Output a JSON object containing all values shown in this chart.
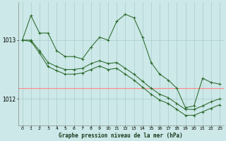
{
  "title": "Graphe pression niveau de la mer (hPa)",
  "bg_color": "#cce8e8",
  "grid_color": "#aacccc",
  "line_color": "#2d6a2d",
  "red_line_color": "#ff8888",
  "xlim": [
    -0.5,
    23.5
  ],
  "ylim": [
    1011.55,
    1013.65
  ],
  "yticks": [
    1012.0,
    1013.0
  ],
  "xticks": [
    0,
    1,
    2,
    3,
    4,
    5,
    6,
    7,
    8,
    9,
    10,
    11,
    12,
    13,
    14,
    15,
    16,
    17,
    18,
    19,
    20,
    21,
    22,
    23
  ],
  "red_y": 1012.18,
  "series1": [
    1013.0,
    1013.42,
    1013.12,
    1013.12,
    1012.82,
    1012.72,
    1012.72,
    1012.68,
    1012.88,
    1013.05,
    1013.0,
    1013.32,
    1013.44,
    1013.38,
    1013.05,
    1012.62,
    1012.42,
    1012.32,
    1012.18,
    1011.85,
    1011.88,
    1012.35,
    1012.28,
    1012.25
  ],
  "series2": [
    1013.0,
    1013.0,
    1012.82,
    1012.62,
    1012.55,
    1012.5,
    1012.5,
    1012.52,
    1012.6,
    1012.65,
    1012.6,
    1012.62,
    1012.52,
    1012.42,
    1012.3,
    1012.18,
    1012.08,
    1012.02,
    1011.92,
    1011.82,
    1011.82,
    1011.88,
    1011.95,
    1012.0
  ],
  "series3": [
    1013.0,
    1012.98,
    1012.78,
    1012.55,
    1012.48,
    1012.42,
    1012.42,
    1012.44,
    1012.5,
    1012.56,
    1012.5,
    1012.52,
    1012.42,
    1012.32,
    1012.2,
    1012.08,
    1011.98,
    1011.92,
    1011.82,
    1011.72,
    1011.72,
    1011.78,
    1011.84,
    1011.9
  ]
}
